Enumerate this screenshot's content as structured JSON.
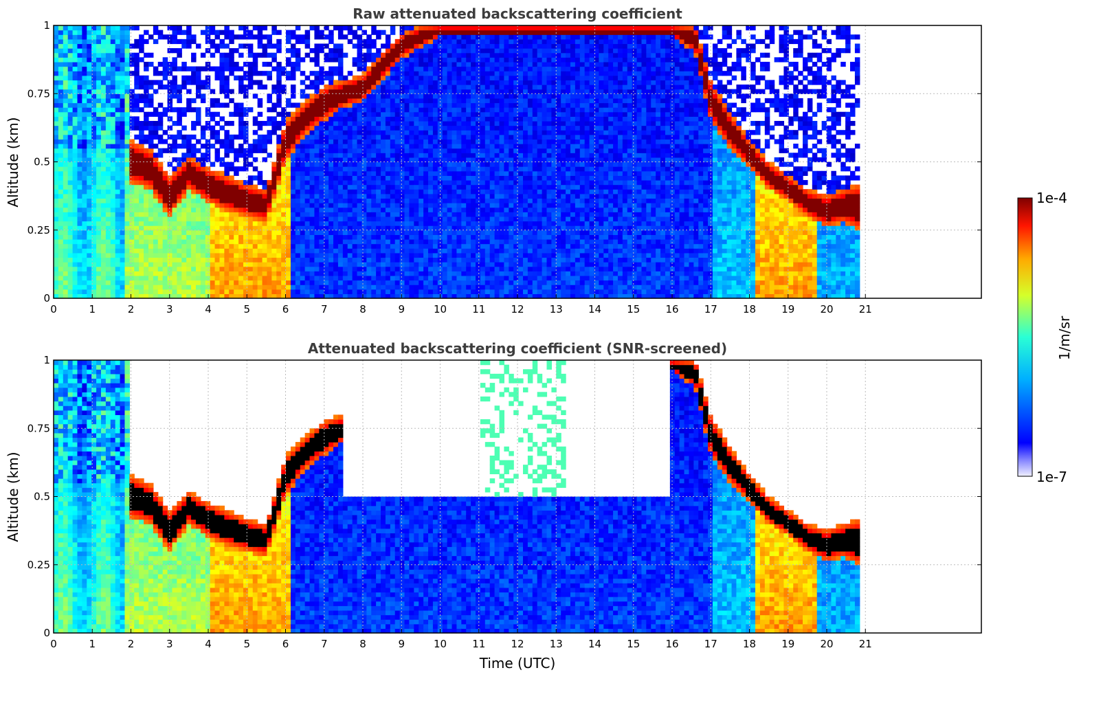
{
  "chart_data": [
    {
      "type": "heatmap",
      "title": "Raw attenuated backscattering coefficient",
      "xlabel": "",
      "ylabel": "Altitude (km)",
      "xlim": [
        0,
        24
      ],
      "ylim": [
        0,
        1
      ],
      "x_ticks": [
        "0",
        "1",
        "2",
        "3",
        "4",
        "5",
        "6",
        "7",
        "8",
        "9",
        "10",
        "11",
        "12",
        "13",
        "14",
        "15",
        "16",
        "17",
        "18",
        "19",
        "20",
        "21"
      ],
      "y_ticks": [
        "0",
        "0.25",
        "0.5",
        "0.75",
        "1"
      ],
      "data_end_time": 20.85,
      "grid": true,
      "layers": [
        {
          "name": "cloud",
          "times": [
            0,
            1.9,
            2.0,
            2.5,
            3.0,
            3.5,
            4.0,
            4.5,
            5.0,
            5.5,
            6.0,
            6.5,
            7.0,
            7.5,
            8.0,
            8.5,
            9.0,
            9.5,
            10.0,
            16.0,
            16.6,
            17.0,
            17.5,
            18.0,
            18.5,
            19.0,
            19.5,
            20.0,
            20.4,
            20.8
          ],
          "base_km": [
            null,
            null,
            0.42,
            0.4,
            0.3,
            0.4,
            0.35,
            0.32,
            0.3,
            0.28,
            0.5,
            0.6,
            0.65,
            0.7,
            0.72,
            0.8,
            0.88,
            0.92,
            0.96,
            0.96,
            0.9,
            0.65,
            0.55,
            0.48,
            0.4,
            0.36,
            0.3,
            0.26,
            0.28,
            0.25
          ],
          "top_km": [
            null,
            null,
            0.58,
            0.55,
            0.45,
            0.52,
            0.48,
            0.45,
            0.42,
            0.4,
            0.65,
            0.72,
            0.78,
            0.8,
            0.82,
            0.9,
            0.97,
            1.0,
            1.0,
            1.0,
            1.0,
            0.8,
            0.68,
            0.58,
            0.5,
            0.45,
            0.4,
            0.38,
            0.4,
            0.42
          ]
        }
      ]
    },
    {
      "type": "heatmap",
      "title": "Attenuated backscattering coefficient (SNR-screened)",
      "xlabel": "Time (UTC)",
      "ylabel": "Altitude (km)",
      "xlim": [
        0,
        24
      ],
      "ylim": [
        0,
        1
      ],
      "x_ticks": [
        "0",
        "1",
        "2",
        "3",
        "4",
        "5",
        "6",
        "7",
        "8",
        "9",
        "10",
        "11",
        "12",
        "13",
        "14",
        "15",
        "16",
        "17",
        "18",
        "19",
        "20",
        "21"
      ],
      "y_ticks": [
        "0",
        "0.25",
        "0.5",
        "0.75",
        "1"
      ],
      "data_end_time": 20.85,
      "grid": true
    }
  ],
  "colorbar": {
    "max_label": "1e-4",
    "min_label": "1e-7",
    "unit_label": "1/m/sr",
    "colormap": "jet"
  },
  "colors": {
    "cloud_core": "#7f0000",
    "high": "#ff2a00",
    "mid": "#ffd500",
    "cyan": "#2ad5ff",
    "low": "#0020ff",
    "screened_saturation": "#000000"
  }
}
